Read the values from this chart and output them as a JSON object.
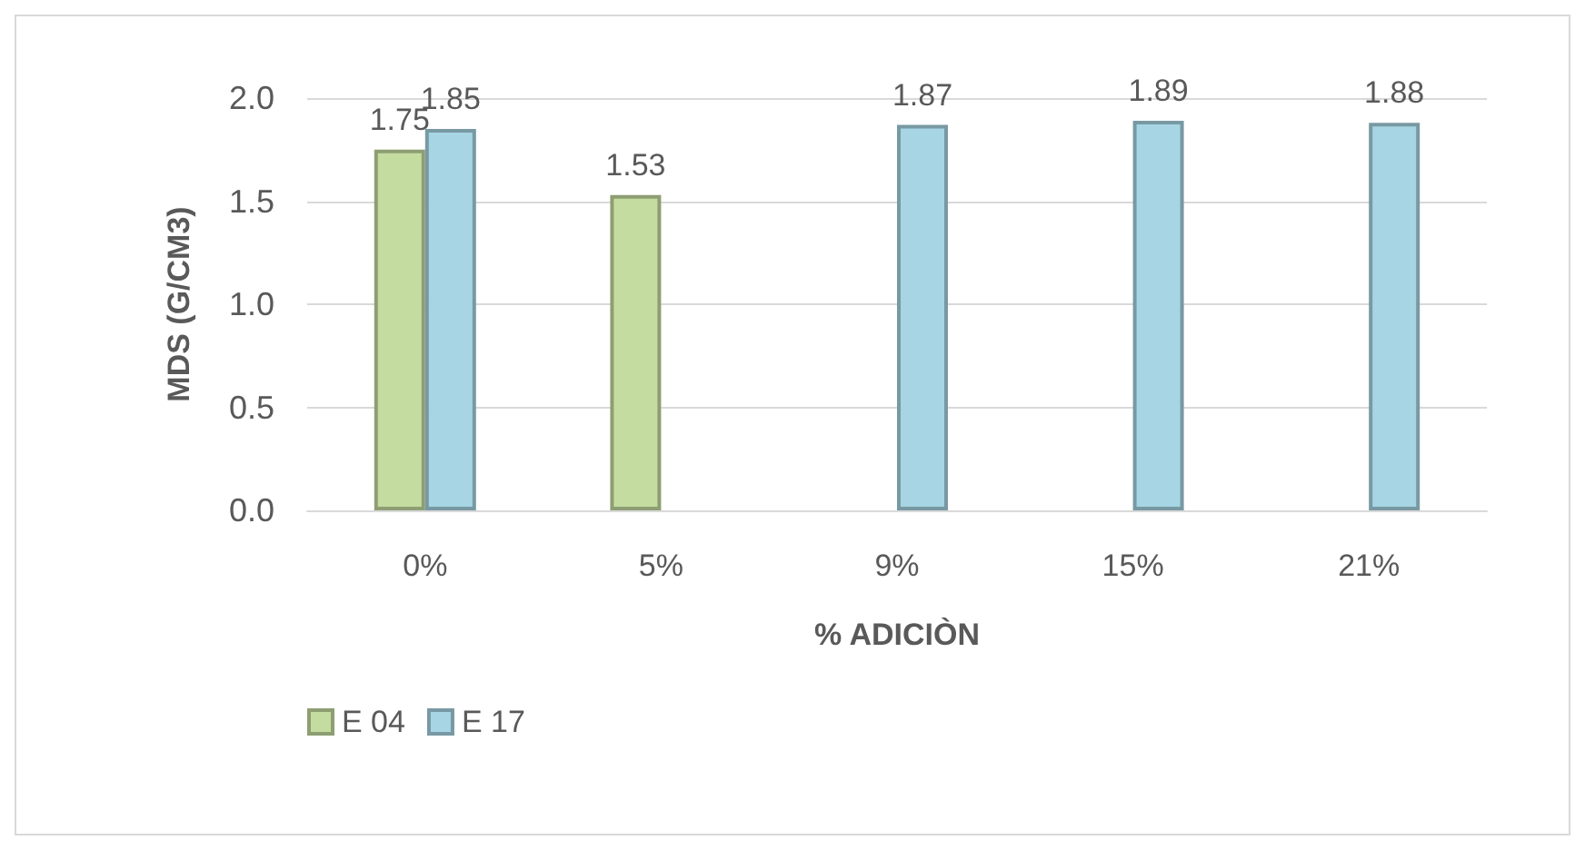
{
  "chart_data": {
    "type": "bar",
    "xlabel": "% ADICIÒN",
    "ylabel": "MDS (G/CM3)",
    "categories": [
      "0%",
      "5%",
      "9%",
      "15%",
      "21%"
    ],
    "series": [
      {
        "name": "E 04",
        "color": "#c5dca0",
        "values": [
          1.75,
          1.53,
          null,
          null,
          null
        ]
      },
      {
        "name": "E 17",
        "color": "#a7d5e3",
        "values": [
          1.85,
          null,
          1.87,
          1.89,
          1.88
        ]
      }
    ],
    "ylim": [
      0,
      2
    ],
    "yticks": [
      {
        "value": 0,
        "label": "0.0"
      },
      {
        "value": 0.5,
        "label": "0.5"
      },
      {
        "value": 1,
        "label": "1.0"
      },
      {
        "value": 1.5,
        "label": "1.5"
      },
      {
        "value": 2,
        "label": "2.0"
      }
    ],
    "grid": "y",
    "legend": "bottom left",
    "data_labels": true
  }
}
